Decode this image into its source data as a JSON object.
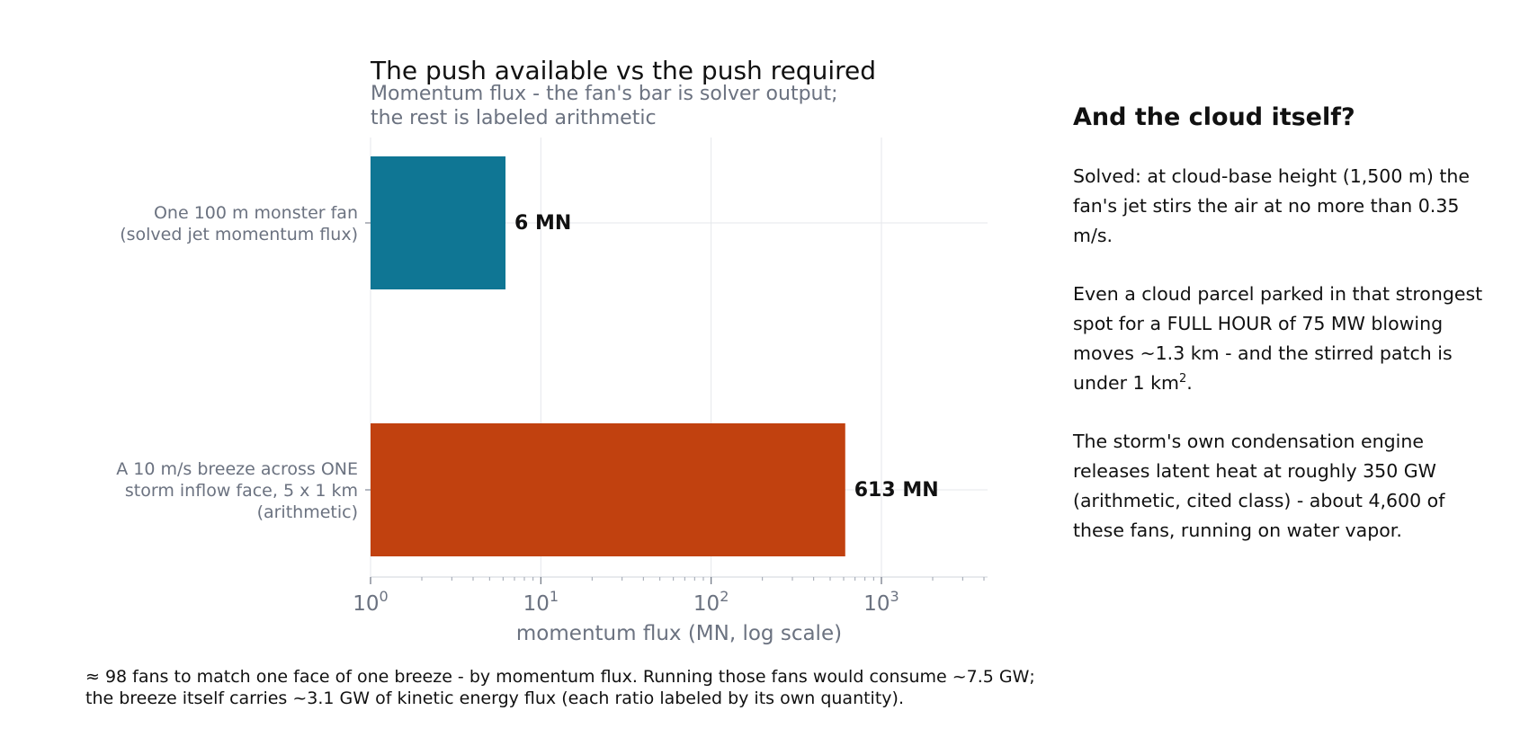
{
  "chart_data": {
    "type": "bar",
    "orientation": "horizontal",
    "title": "The push available vs the push required",
    "subtitle_lines": [
      "Momentum flux - the fan's bar is solver output;",
      "the rest is labeled arithmetic"
    ],
    "xlabel": "momentum flux (MN, log scale)",
    "x_scale": "log10",
    "xlim": [
      1,
      4200
    ],
    "x_ticks": [
      {
        "value": 1,
        "base": "10",
        "exp": "0"
      },
      {
        "value": 10,
        "base": "10",
        "exp": "1"
      },
      {
        "value": 100,
        "base": "10",
        "exp": "2"
      },
      {
        "value": 1000,
        "base": "10",
        "exp": "3"
      }
    ],
    "grid": true,
    "bars": [
      {
        "label_lines": [
          "One 100 m monster fan",
          "(solved jet momentum flux)"
        ],
        "value": 6.2,
        "value_label": "6 MN",
        "color": "#0f7694"
      },
      {
        "label_lines": [
          "A 10 m/s breeze across ONE",
          "storm inflow face, 5 x 1 km",
          "(arithmetic)"
        ],
        "value": 613,
        "value_label": "613 MN",
        "color": "#c1410f"
      }
    ]
  },
  "side_panel": {
    "title": "And the cloud itself?",
    "para1": "Solved: at cloud-base height (1,500 m) the fan's jet stirs the air at no more than 0.35 m/s.",
    "para2_main": "Even a cloud parcel parked in that strongest spot for a FULL HOUR of 75 MW blowing moves ~1.3 km - and the stirred patch is under 1 km",
    "para2_sup": "2",
    "para2_end": ".",
    "para3": "The storm's own condensation engine releases latent heat at roughly 350 GW (arithmetic, cited class) - about 4,600 of these fans, running on water vapor."
  },
  "footnote": {
    "line1": "≈ 98 fans to match one face of one breeze - by momentum flux. Running those fans would consume ~7.5 GW;",
    "line2": "the breeze itself carries ~3.1 GW of kinetic energy flux (each ratio labeled by its own quantity)."
  }
}
